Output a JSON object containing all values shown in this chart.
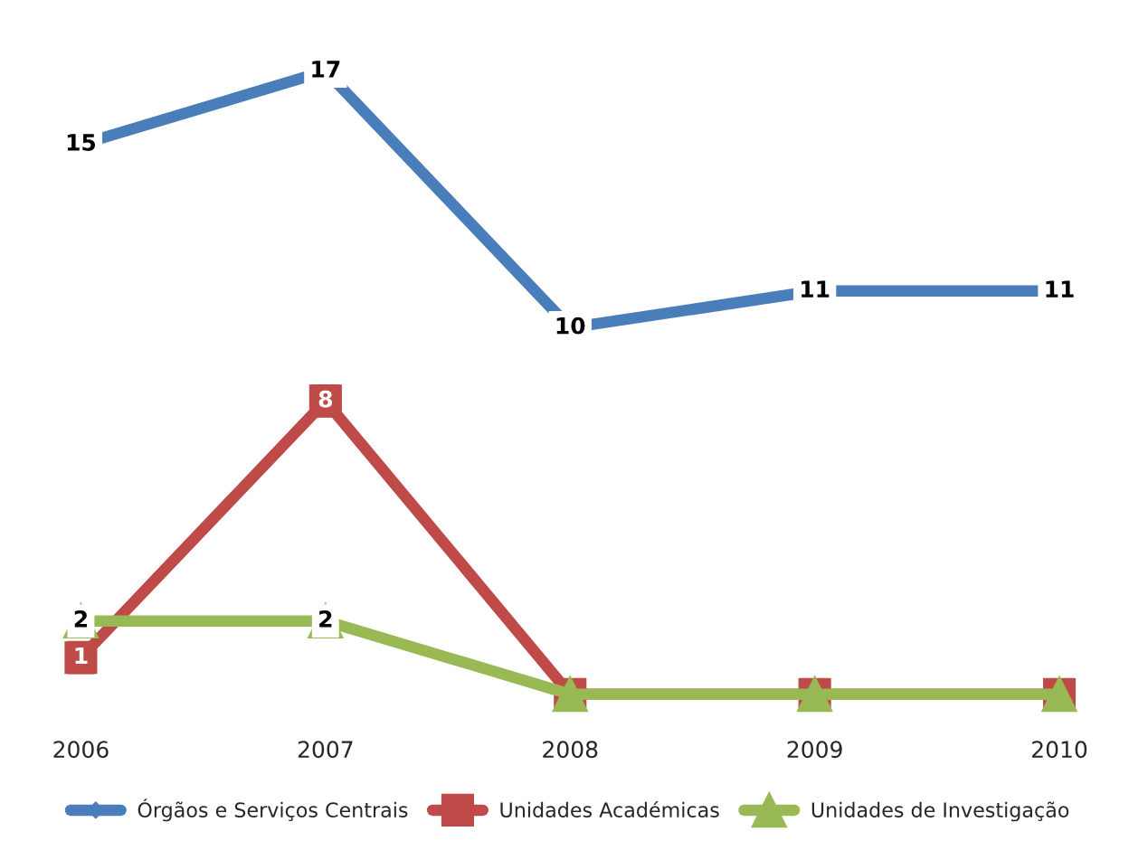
{
  "chart_data": {
    "type": "line",
    "categories": [
      "2006",
      "2007",
      "2008",
      "2009",
      "2010"
    ],
    "series": [
      {
        "name": "Órgãos e Serviços Centrais",
        "color": "#4a7ebb",
        "values": [
          15,
          17,
          10,
          11,
          11
        ],
        "marker": "diamond",
        "value_labels": [
          "15",
          "17",
          "10",
          "11",
          "11"
        ]
      },
      {
        "name": "Unidades Académicas",
        "color": "#be4b48",
        "values": [
          1,
          8,
          0,
          0,
          0
        ],
        "marker": "square",
        "value_labels": [
          "1",
          "8",
          null,
          null,
          null
        ]
      },
      {
        "name": "Unidades de Investigação",
        "color": "#98b954",
        "values": [
          2,
          2,
          0,
          0,
          0
        ],
        "marker": "triangle",
        "value_labels": [
          "2",
          "2",
          null,
          null,
          null
        ]
      }
    ],
    "legend": "bottom",
    "grid": false
  }
}
